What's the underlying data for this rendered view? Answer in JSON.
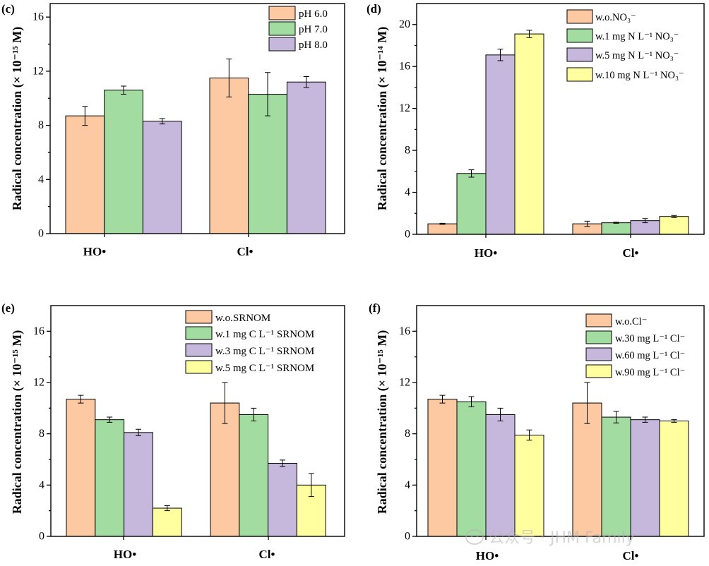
{
  "watermark": {
    "text": "公众号 · JHM Family"
  },
  "chart_data": [
    {
      "panel": "(c)",
      "type": "bar",
      "categories": [
        "HO•",
        "Cl•"
      ],
      "ylabel": "Radical concentration (× 10⁻¹⁵ M)",
      "ylim": [
        0,
        17
      ],
      "yticks": [
        0,
        4,
        8,
        12,
        16
      ],
      "grid": false,
      "legend_position": "top-right",
      "series": [
        {
          "name": "pH 6.0",
          "color": "#FCC9A2",
          "values": [
            8.7,
            11.5
          ],
          "errors": [
            0.7,
            1.4
          ]
        },
        {
          "name": "pH 7.0",
          "color": "#A2DCA0",
          "values": [
            10.6,
            10.3
          ],
          "errors": [
            0.3,
            1.6
          ]
        },
        {
          "name": "pH 8.0",
          "color": "#C6B8DD",
          "values": [
            8.3,
            11.2
          ],
          "errors": [
            0.2,
            0.4
          ]
        }
      ]
    },
    {
      "panel": "(d)",
      "type": "bar",
      "categories": [
        "HO•",
        "Cl•"
      ],
      "ylabel": "Radical concentration (× 10⁻¹⁴ M)",
      "ylim": [
        0,
        22
      ],
      "yticks": [
        0,
        4,
        8,
        12,
        16,
        20
      ],
      "grid": false,
      "legend_position": "top-right",
      "series": [
        {
          "name": "w.o.NO₃⁻",
          "color": "#FCC9A2",
          "values": [
            1.0,
            1.0
          ],
          "errors": [
            0.05,
            0.25
          ]
        },
        {
          "name": "w.1 mg N L⁻¹ NO₃⁻",
          "color": "#A2DCA0",
          "values": [
            5.8,
            1.1
          ],
          "errors": [
            0.35,
            0.05
          ]
        },
        {
          "name": "w.5 mg N L⁻¹ NO₃⁻",
          "color": "#C6B8DD",
          "values": [
            17.1,
            1.3
          ],
          "errors": [
            0.55,
            0.2
          ]
        },
        {
          "name": "w.10 mg N L⁻¹ NO₃⁻",
          "color": "#FFFFA0",
          "values": [
            19.1,
            1.7
          ],
          "errors": [
            0.35,
            0.1
          ]
        }
      ]
    },
    {
      "panel": "(e)",
      "type": "bar",
      "categories": [
        "HO•",
        "Cl•"
      ],
      "ylabel": "Radical concentration (× 10⁻¹⁵ M)",
      "ylim": [
        0,
        18
      ],
      "yticks": [
        0,
        4,
        8,
        12,
        16
      ],
      "grid": false,
      "legend_position": "top-right",
      "series": [
        {
          "name": "w.o.SRNOM",
          "color": "#FCC9A2",
          "values": [
            10.7,
            10.4
          ],
          "errors": [
            0.3,
            1.6
          ]
        },
        {
          "name": "w.1 mg C L⁻¹ SRNOM",
          "color": "#A2DCA0",
          "values": [
            9.1,
            9.5
          ],
          "errors": [
            0.2,
            0.5
          ]
        },
        {
          "name": "w.3 mg C L⁻¹ SRNOM",
          "color": "#C6B8DD",
          "values": [
            8.1,
            5.7
          ],
          "errors": [
            0.25,
            0.25
          ]
        },
        {
          "name": "w.5 mg C L⁻¹ SRNOM",
          "color": "#FFFFA0",
          "values": [
            2.2,
            4.0
          ],
          "errors": [
            0.2,
            0.9
          ]
        }
      ]
    },
    {
      "panel": "(f)",
      "type": "bar",
      "categories": [
        "HO•",
        "Cl•"
      ],
      "ylabel": "Radical concentration (× 10⁻¹⁵ M)",
      "ylim": [
        0,
        18
      ],
      "yticks": [
        0,
        4,
        8,
        12,
        16
      ],
      "grid": false,
      "legend_position": "top-right",
      "series": [
        {
          "name": "w.o.Cl⁻",
          "color": "#FCC9A2",
          "values": [
            10.7,
            10.4
          ],
          "errors": [
            0.3,
            1.6
          ]
        },
        {
          "name": "w.30 mg L⁻¹ Cl⁻",
          "color": "#A2DCA0",
          "values": [
            10.5,
            9.3
          ],
          "errors": [
            0.4,
            0.45
          ]
        },
        {
          "name": "w.60 mg L⁻¹ Cl⁻",
          "color": "#C6B8DD",
          "values": [
            9.5,
            9.1
          ],
          "errors": [
            0.5,
            0.2
          ]
        },
        {
          "name": "w.90 mg L⁻¹ Cl⁻",
          "color": "#FFFFA0",
          "values": [
            7.9,
            9.0
          ],
          "errors": [
            0.4,
            0.1
          ]
        }
      ]
    }
  ]
}
